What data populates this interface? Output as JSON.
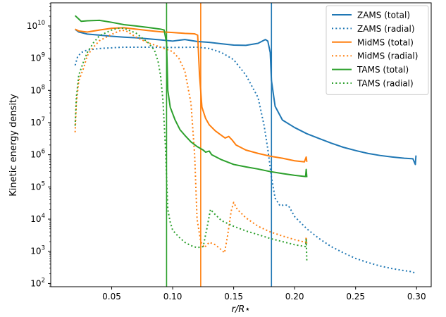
{
  "chart_data": {
    "type": "line",
    "xlabel": "r/R⋆",
    "ylabel": "Kinetic energy density",
    "xlim": [
      0.0,
      0.312
    ],
    "ylim_log10": [
      1.9,
      10.72
    ],
    "y_scale": "log",
    "x_ticks": [
      {
        "value": 0.05,
        "label": "0.05"
      },
      {
        "value": 0.1,
        "label": "0.10"
      },
      {
        "value": 0.15,
        "label": "0.15"
      },
      {
        "value": 0.2,
        "label": "0.20"
      },
      {
        "value": 0.25,
        "label": "0.25"
      },
      {
        "value": 0.3,
        "label": "0.30"
      }
    ],
    "y_ticks": [
      {
        "exp": 2,
        "base": "10",
        "sup": "2"
      },
      {
        "exp": 3,
        "base": "10",
        "sup": "3"
      },
      {
        "exp": 4,
        "base": "10",
        "sup": "4"
      },
      {
        "exp": 5,
        "base": "10",
        "sup": "5"
      },
      {
        "exp": 6,
        "base": "10",
        "sup": "6"
      },
      {
        "exp": 7,
        "base": "10",
        "sup": "7"
      },
      {
        "exp": 8,
        "base": "10",
        "sup": "8"
      },
      {
        "exp": 9,
        "base": "10",
        "sup": "9"
      },
      {
        "exp": 10,
        "base": "10",
        "sup": "10"
      }
    ],
    "grid": false,
    "legend_position": "top-right",
    "vertical_lines": [
      {
        "x": 0.181,
        "color": "#1f77b4"
      },
      {
        "x": 0.123,
        "color": "#ff7f0e"
      },
      {
        "x": 0.095,
        "color": "#2ca02c"
      }
    ],
    "series": [
      {
        "name": "ZAMS (total)",
        "color": "#1f77b4",
        "style": "solid",
        "points": [
          [
            0.02,
            7900000000.0
          ],
          [
            0.023,
            6500000000.0
          ],
          [
            0.03,
            5600000000.0
          ],
          [
            0.04,
            5200000000.0
          ],
          [
            0.05,
            4800000000.0
          ],
          [
            0.06,
            4500000000.0
          ],
          [
            0.07,
            4300000000.0
          ],
          [
            0.08,
            4000000000.0
          ],
          [
            0.09,
            3700000000.0
          ],
          [
            0.1,
            3400000000.0
          ],
          [
            0.11,
            3800000000.0
          ],
          [
            0.12,
            3300000000.0
          ],
          [
            0.13,
            3100000000.0
          ],
          [
            0.14,
            2800000000.0
          ],
          [
            0.15,
            2550000000.0
          ],
          [
            0.16,
            2500000000.0
          ],
          [
            0.17,
            2900000000.0
          ],
          [
            0.176,
            3800000000.0
          ],
          [
            0.178,
            3400000000.0
          ],
          [
            0.18,
            1500000000.0
          ],
          [
            0.181,
            200000000.0
          ],
          [
            0.184,
            32000000.0
          ],
          [
            0.19,
            12000000.0
          ],
          [
            0.2,
            7000000.0
          ],
          [
            0.21,
            4500000.0
          ],
          [
            0.22,
            3200000.0
          ],
          [
            0.23,
            2300000.0
          ],
          [
            0.24,
            1700000.0
          ],
          [
            0.25,
            1350000.0
          ],
          [
            0.26,
            1100000.0
          ],
          [
            0.27,
            950000.0
          ],
          [
            0.28,
            850000.0
          ],
          [
            0.29,
            780000.0
          ],
          [
            0.297,
            750000.0
          ],
          [
            0.299,
            500000.0
          ],
          [
            0.2995,
            950000.0
          ]
        ]
      },
      {
        "name": "ZAMS (radial)",
        "color": "#1f77b4",
        "style": "dotted",
        "points": [
          [
            0.02,
            600000000.0
          ],
          [
            0.022,
            1100000000.0
          ],
          [
            0.025,
            1500000000.0
          ],
          [
            0.03,
            1800000000.0
          ],
          [
            0.04,
            2000000000.0
          ],
          [
            0.06,
            2200000000.0
          ],
          [
            0.08,
            2200000000.0
          ],
          [
            0.1,
            2150000000.0
          ],
          [
            0.12,
            2200000000.0
          ],
          [
            0.13,
            2000000000.0
          ],
          [
            0.14,
            1500000000.0
          ],
          [
            0.15,
            900000000.0
          ],
          [
            0.16,
            300000000.0
          ],
          [
            0.17,
            60000000.0
          ],
          [
            0.175,
            8000000.0
          ],
          [
            0.178,
            1500000.0
          ],
          [
            0.181,
            200000.0
          ],
          [
            0.184,
            45000.0
          ],
          [
            0.188,
            26000.0
          ],
          [
            0.192,
            28000.0
          ],
          [
            0.195,
            26000.0
          ],
          [
            0.2,
            12000.0
          ],
          [
            0.21,
            5000.0
          ],
          [
            0.22,
            2500.0
          ],
          [
            0.23,
            1400.0
          ],
          [
            0.24,
            900.0
          ],
          [
            0.25,
            600.0
          ],
          [
            0.26,
            450.0
          ],
          [
            0.27,
            350.0
          ],
          [
            0.28,
            290.0
          ],
          [
            0.29,
            250.0
          ],
          [
            0.297,
            230.0
          ],
          [
            0.299,
            200.0
          ]
        ]
      },
      {
        "name": "MidMS (total)",
        "color": "#ff7f0e",
        "style": "solid",
        "points": [
          [
            0.02,
            8000000000.0
          ],
          [
            0.023,
            7000000000.0
          ],
          [
            0.03,
            6500000000.0
          ],
          [
            0.04,
            7500000000.0
          ],
          [
            0.05,
            8500000000.0
          ],
          [
            0.06,
            8800000000.0
          ],
          [
            0.07,
            8000000000.0
          ],
          [
            0.08,
            7200000000.0
          ],
          [
            0.09,
            6600000000.0
          ],
          [
            0.1,
            6300000000.0
          ],
          [
            0.11,
            5900000000.0
          ],
          [
            0.118,
            5700000000.0
          ],
          [
            0.1205,
            5200000000.0
          ],
          [
            0.122,
            300000000.0
          ],
          [
            0.124,
            30000000.0
          ],
          [
            0.127,
            13500000.0
          ],
          [
            0.13,
            8500000.0
          ],
          [
            0.135,
            5500000.0
          ],
          [
            0.14,
            4000000.0
          ],
          [
            0.143,
            3300000.0
          ],
          [
            0.146,
            3700000.0
          ],
          [
            0.149,
            2800000.0
          ],
          [
            0.152,
            2000000.0
          ],
          [
            0.16,
            1400000.0
          ],
          [
            0.17,
            1100000.0
          ],
          [
            0.18,
            900000.0
          ],
          [
            0.19,
            780000.0
          ],
          [
            0.2,
            650000.0
          ],
          [
            0.208,
            600000.0
          ],
          [
            0.2095,
            850000.0
          ],
          [
            0.21,
            600000.0
          ]
        ]
      },
      {
        "name": "MidMS (radial)",
        "color": "#ff7f0e",
        "style": "dotted",
        "points": [
          [
            0.02,
            5000000.0
          ],
          [
            0.021,
            40000000.0
          ],
          [
            0.023,
            200000000.0
          ],
          [
            0.027,
            500000000.0
          ],
          [
            0.03,
            1200000000.0
          ],
          [
            0.035,
            2200000000.0
          ],
          [
            0.04,
            3500000000.0
          ],
          [
            0.05,
            5500000000.0
          ],
          [
            0.058,
            7500000000.0
          ],
          [
            0.062,
            7000000000.0
          ],
          [
            0.07,
            4500000000.0
          ],
          [
            0.08,
            3000000000.0
          ],
          [
            0.09,
            2200000000.0
          ],
          [
            0.1,
            1600000000.0
          ],
          [
            0.105,
            1000000000.0
          ],
          [
            0.11,
            400000000.0
          ],
          [
            0.115,
            40000000.0
          ],
          [
            0.118,
            1000000.0
          ],
          [
            0.12,
            10000.0
          ],
          [
            0.123,
            2000.0
          ],
          [
            0.126,
            1300.0
          ],
          [
            0.13,
            1900.0
          ],
          [
            0.135,
            1600.0
          ],
          [
            0.14,
            1100.0
          ],
          [
            0.1425,
            900.0
          ],
          [
            0.145,
            3000.0
          ],
          [
            0.148,
            18000.0
          ],
          [
            0.15,
            33000.0
          ],
          [
            0.153,
            20000.0
          ],
          [
            0.16,
            11000.0
          ],
          [
            0.17,
            6000.0
          ],
          [
            0.18,
            4000.0
          ],
          [
            0.19,
            3000.0
          ],
          [
            0.2,
            2300.0
          ],
          [
            0.209,
            1900.0
          ],
          [
            0.2095,
            2800.0
          ],
          [
            0.21,
            1500.0
          ]
        ]
      },
      {
        "name": "TAMS (total)",
        "color": "#2ca02c",
        "style": "solid",
        "points": [
          [
            0.02,
            21000000000.0
          ],
          [
            0.025,
            14000000000.0
          ],
          [
            0.03,
            14500000000.0
          ],
          [
            0.04,
            15000000000.0
          ],
          [
            0.05,
            13000000000.0
          ],
          [
            0.06,
            11000000000.0
          ],
          [
            0.07,
            10000000000.0
          ],
          [
            0.08,
            9000000000.0
          ],
          [
            0.09,
            8000000000.0
          ],
          [
            0.093,
            7500000000.0
          ],
          [
            0.095,
            3000000000.0
          ],
          [
            0.096,
            100000000.0
          ],
          [
            0.098,
            30000000.0
          ],
          [
            0.102,
            12000000.0
          ],
          [
            0.106,
            6000000.0
          ],
          [
            0.11,
            4000000.0
          ],
          [
            0.115,
            2500000.0
          ],
          [
            0.12,
            1800000.0
          ],
          [
            0.125,
            1400000.0
          ],
          [
            0.127,
            1200000.0
          ],
          [
            0.13,
            1300000.0
          ],
          [
            0.132,
            1000000.0
          ],
          [
            0.14,
            700000.0
          ],
          [
            0.15,
            500000.0
          ],
          [
            0.16,
            420000.0
          ],
          [
            0.17,
            360000.0
          ],
          [
            0.18,
            300000.0
          ],
          [
            0.19,
            260000.0
          ],
          [
            0.2,
            230000.0
          ],
          [
            0.209,
            210000.0
          ],
          [
            0.2095,
            350000.0
          ],
          [
            0.21,
            200000.0
          ]
        ]
      },
      {
        "name": "TAMS (radial)",
        "color": "#2ca02c",
        "style": "dotted",
        "points": [
          [
            0.02,
            8000000.0
          ],
          [
            0.021,
            60000000.0
          ],
          [
            0.023,
            300000000.0
          ],
          [
            0.027,
            800000000.0
          ],
          [
            0.03,
            1500000000.0
          ],
          [
            0.035,
            3000000000.0
          ],
          [
            0.04,
            5000000000.0
          ],
          [
            0.05,
            7500000000.0
          ],
          [
            0.055,
            8500000000.0
          ],
          [
            0.06,
            8500000000.0
          ],
          [
            0.07,
            6000000000.0
          ],
          [
            0.08,
            3000000000.0
          ],
          [
            0.085,
            1800000000.0
          ],
          [
            0.088,
            800000000.0
          ],
          [
            0.09,
            300000000.0
          ],
          [
            0.092,
            50000000.0
          ],
          [
            0.094,
            2000000.0
          ],
          [
            0.096,
            20000.0
          ],
          [
            0.098,
            8000.0
          ],
          [
            0.1,
            4500.0
          ],
          [
            0.105,
            2800.0
          ],
          [
            0.11,
            1900.0
          ],
          [
            0.115,
            1500.0
          ],
          [
            0.12,
            1300.0
          ],
          [
            0.125,
            1400.0
          ],
          [
            0.128,
            5000.0
          ],
          [
            0.131,
            20000.0
          ],
          [
            0.134,
            15000.0
          ],
          [
            0.14,
            9000.0
          ],
          [
            0.15,
            6000.0
          ],
          [
            0.16,
            4300.0
          ],
          [
            0.17,
            3300.0
          ],
          [
            0.18,
            2500.0
          ],
          [
            0.19,
            2000.0
          ],
          [
            0.2,
            1600.0
          ],
          [
            0.209,
            1400.0
          ],
          [
            0.2095,
            2500.0
          ],
          [
            0.21,
            500.0
          ]
        ]
      }
    ]
  }
}
